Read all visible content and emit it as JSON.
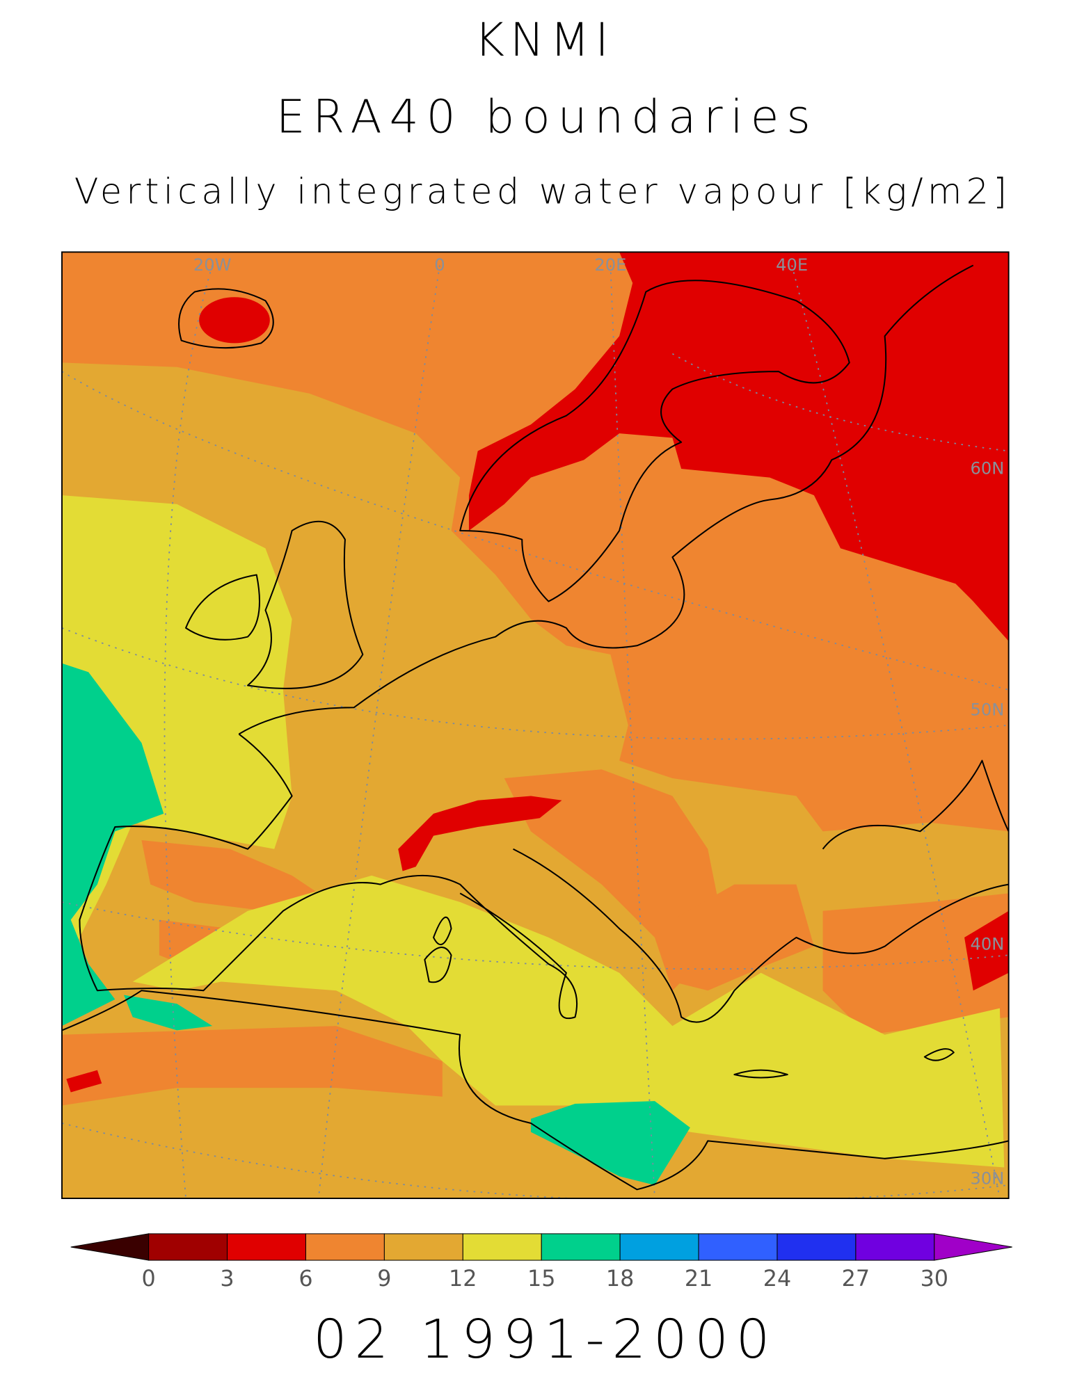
{
  "header": {
    "lines": [
      "KNMI",
      "ERA40 boundaries",
      "Vertically integrated water vapour [kg/m2]"
    ]
  },
  "map": {
    "grid_labels": [
      "20W",
      "0",
      "20E",
      "40E",
      "60N",
      "50N",
      "40N",
      "30N"
    ]
  },
  "colorbar": {
    "ticks": [
      0,
      3,
      6,
      9,
      12,
      15,
      18,
      21,
      24,
      27,
      30
    ],
    "colors": [
      "#3a0000",
      "#a00000",
      "#e00000",
      "#ef8530",
      "#e3a832",
      "#e3dc35",
      "#00d08c",
      "#00a0e0",
      "#3060ff",
      "#2030f0",
      "#7000e0",
      "#a000c8"
    ]
  },
  "footer": "02 1991-2000"
}
